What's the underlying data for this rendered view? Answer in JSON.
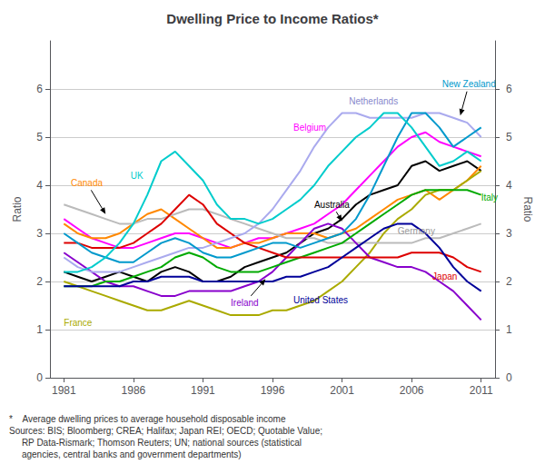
{
  "chart_data": {
    "type": "line",
    "title": "Dwelling Price to Income Ratios*",
    "ylabel": "Ratio",
    "y2label": "Ratio",
    "xlim": [
      1980,
      2012
    ],
    "xticks": [
      1981,
      1986,
      1991,
      1996,
      2001,
      2006,
      2011
    ],
    "ylim": [
      0,
      7
    ],
    "yticks": [
      0,
      1,
      2,
      3,
      4,
      5,
      6
    ],
    "y2lim": [
      0,
      7
    ],
    "y2ticks": [
      0,
      1,
      2,
      3,
      4,
      5,
      6
    ],
    "grid": true,
    "x": [
      1981,
      1982,
      1983,
      1984,
      1985,
      1986,
      1987,
      1988,
      1989,
      1990,
      1991,
      1992,
      1993,
      1994,
      1995,
      1996,
      1997,
      1998,
      1999,
      2000,
      2001,
      2002,
      2003,
      2004,
      2005,
      2006,
      2007,
      2008,
      2009,
      2010,
      2011
    ],
    "series": [
      {
        "name": "Australia",
        "color": "#000000",
        "values": [
          2.2,
          2.1,
          2.0,
          2.1,
          2.2,
          2.1,
          2.0,
          2.2,
          2.3,
          2.2,
          2.0,
          2.0,
          2.1,
          2.3,
          2.4,
          2.5,
          2.6,
          2.8,
          3.0,
          3.1,
          3.3,
          3.6,
          3.8,
          3.9,
          4.0,
          4.4,
          4.5,
          4.3,
          4.4,
          4.5,
          4.3
        ]
      },
      {
        "name": "Belgium",
        "color": "#ff00ff",
        "values": [
          3.3,
          3.1,
          2.9,
          2.8,
          2.7,
          2.7,
          2.8,
          2.9,
          3.0,
          3.0,
          2.9,
          2.8,
          2.7,
          2.8,
          2.9,
          2.9,
          3.0,
          3.1,
          3.2,
          3.4,
          3.6,
          3.9,
          4.2,
          4.5,
          4.8,
          5.0,
          5.1,
          4.9,
          4.8,
          4.7,
          4.6
        ]
      },
      {
        "name": "Canada",
        "color": "#ff8800",
        "values": [
          3.2,
          3.0,
          2.9,
          2.9,
          3.0,
          3.2,
          3.4,
          3.5,
          3.3,
          3.1,
          2.9,
          2.7,
          2.7,
          2.8,
          2.8,
          2.9,
          3.0,
          3.0,
          3.0,
          2.9,
          3.0,
          3.1,
          3.3,
          3.5,
          3.7,
          3.8,
          3.9,
          3.7,
          3.9,
          4.1,
          4.4
        ]
      },
      {
        "name": "France",
        "color": "#aaaa00",
        "values": [
          2.0,
          1.9,
          1.8,
          1.7,
          1.6,
          1.5,
          1.4,
          1.4,
          1.5,
          1.6,
          1.5,
          1.4,
          1.3,
          1.3,
          1.3,
          1.4,
          1.4,
          1.5,
          1.6,
          1.8,
          2.0,
          2.3,
          2.6,
          3.0,
          3.3,
          3.5,
          3.8,
          3.9,
          3.9,
          4.1,
          4.3
        ]
      },
      {
        "name": "Germany",
        "color": "#bbbbbb",
        "values": [
          3.6,
          3.5,
          3.4,
          3.3,
          3.2,
          3.2,
          3.3,
          3.3,
          3.4,
          3.5,
          3.5,
          3.4,
          3.3,
          3.2,
          3.1,
          3.0,
          2.9,
          2.9,
          2.9,
          2.8,
          2.8,
          2.8,
          2.8,
          2.8,
          2.8,
          2.8,
          2.9,
          2.9,
          3.0,
          3.1,
          3.2
        ]
      },
      {
        "name": "Ireland",
        "color": "#8800cc",
        "values": [
          2.6,
          2.4,
          2.2,
          2.0,
          1.9,
          1.9,
          1.8,
          1.7,
          1.7,
          1.8,
          1.8,
          1.8,
          1.8,
          1.9,
          2.0,
          2.2,
          2.5,
          2.8,
          3.1,
          3.2,
          3.1,
          2.8,
          2.5,
          2.4,
          2.3,
          2.3,
          2.2,
          2.0,
          1.8,
          1.5,
          1.2
        ]
      },
      {
        "name": "Italy",
        "color": "#00aa00",
        "values": [
          1.9,
          1.9,
          1.9,
          2.0,
          2.0,
          2.1,
          2.2,
          2.3,
          2.5,
          2.6,
          2.5,
          2.3,
          2.2,
          2.2,
          2.2,
          2.3,
          2.4,
          2.5,
          2.6,
          2.7,
          2.8,
          3.0,
          3.2,
          3.4,
          3.6,
          3.8,
          3.9,
          3.9,
          3.9,
          3.9,
          3.8
        ]
      },
      {
        "name": "Japan",
        "color": "#dd0000",
        "values": [
          2.8,
          2.8,
          2.7,
          2.7,
          2.7,
          2.8,
          3.0,
          3.2,
          3.5,
          3.8,
          3.6,
          3.2,
          3.0,
          2.8,
          2.7,
          2.6,
          2.5,
          2.5,
          2.5,
          2.5,
          2.5,
          2.5,
          2.5,
          2.5,
          2.5,
          2.6,
          2.6,
          2.6,
          2.5,
          2.3,
          2.2
        ]
      },
      {
        "name": "Netherlands",
        "color": "#aaaaee",
        "values": [
          2.5,
          2.3,
          2.2,
          2.2,
          2.2,
          2.3,
          2.4,
          2.5,
          2.6,
          2.7,
          2.7,
          2.8,
          2.9,
          3.0,
          3.2,
          3.5,
          3.9,
          4.3,
          4.8,
          5.2,
          5.5,
          5.5,
          5.4,
          5.4,
          5.4,
          5.4,
          5.5,
          5.5,
          5.4,
          5.3,
          5.0
        ]
      },
      {
        "name": "New Zealand",
        "color": "#0099cc",
        "values": [
          3.0,
          2.8,
          2.6,
          2.5,
          2.4,
          2.4,
          2.6,
          2.8,
          2.9,
          2.8,
          2.6,
          2.5,
          2.5,
          2.6,
          2.7,
          2.8,
          2.8,
          2.7,
          2.8,
          2.9,
          3.0,
          3.3,
          3.8,
          4.4,
          5.0,
          5.5,
          5.5,
          5.2,
          4.8,
          5.0,
          5.2
        ]
      },
      {
        "name": "UK",
        "color": "#00cccc",
        "values": [
          2.2,
          2.2,
          2.3,
          2.5,
          2.8,
          3.2,
          3.8,
          4.5,
          4.7,
          4.4,
          4.1,
          3.6,
          3.3,
          3.3,
          3.2,
          3.3,
          3.5,
          3.7,
          4.0,
          4.4,
          4.7,
          5.0,
          5.2,
          5.5,
          5.5,
          5.2,
          4.8,
          4.4,
          4.5,
          4.7,
          4.5
        ]
      },
      {
        "name": "United States",
        "color": "#000099",
        "values": [
          1.9,
          1.9,
          1.9,
          1.9,
          1.9,
          2.0,
          2.0,
          2.1,
          2.1,
          2.1,
          2.0,
          2.0,
          2.0,
          2.0,
          2.0,
          2.0,
          2.1,
          2.1,
          2.2,
          2.3,
          2.5,
          2.7,
          2.9,
          3.1,
          3.2,
          3.2,
          3.0,
          2.7,
          2.3,
          2.0,
          1.8
        ]
      }
    ],
    "annotations": [
      {
        "text": "Australia",
        "x": 1999.0,
        "y": 3.6,
        "color": "#000000",
        "arrow_to": [
          2001.0,
          3.25
        ]
      },
      {
        "text": "Belgium",
        "x": 1997.5,
        "y": 5.2,
        "color": "#ff00ff"
      },
      {
        "text": "Canada",
        "x": 1981.5,
        "y": 4.05,
        "color": "#ff8800",
        "arrow_to": [
          1984.0,
          3.4
        ]
      },
      {
        "text": "France",
        "x": 1981.0,
        "y": 1.15,
        "color": "#aaaa00"
      },
      {
        "text": "Germany",
        "x": 2005.0,
        "y": 3.05,
        "color": "#999999"
      },
      {
        "text": "Ireland",
        "x": 1993.0,
        "y": 1.55,
        "color": "#8800cc",
        "arrow_to": [
          1995.5,
          2.05
        ]
      },
      {
        "text": "Italy",
        "x": 2011.0,
        "y": 3.75,
        "color": "#00aa00"
      },
      {
        "text": "Japan",
        "x": 2007.5,
        "y": 2.1,
        "color": "#dd0000"
      },
      {
        "text": "Netherlands",
        "x": 2001.5,
        "y": 5.75,
        "color": "#8888cc"
      },
      {
        "text": "New Zealand",
        "x": 2008.2,
        "y": 6.1,
        "color": "#0099cc",
        "arrow_to": [
          2009.5,
          5.45
        ]
      },
      {
        "text": "UK",
        "x": 1985.8,
        "y": 4.2,
        "color": "#00cccc"
      },
      {
        "text": "United States",
        "x": 1997.5,
        "y": 1.62,
        "color": "#000099"
      }
    ],
    "footnotes": [
      "*    Average dwelling prices to average household disposable income",
      "Sources: BIS; Bloomberg; CREA; Halifax; Japan REI; OECD; Quotable Value;",
      "     RP Data-Rismark; Thomson Reuters; UN; national sources (statistical",
      "     agencies, central banks and government departments)"
    ]
  }
}
